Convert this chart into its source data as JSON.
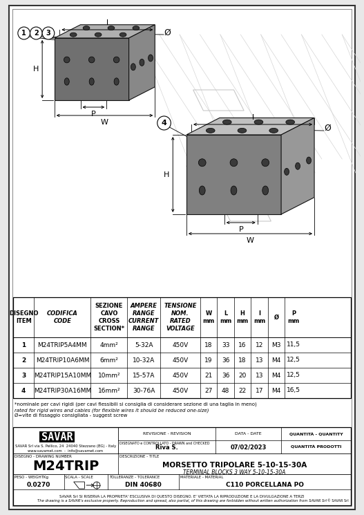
{
  "bg_color": "#e8e8e8",
  "page_bg": "#ffffff",
  "table_rows": [
    [
      "1",
      "M24TRIP5A4MM",
      "4mm²",
      "5-32A",
      "450V",
      "18",
      "33",
      "16",
      "12",
      "M3",
      "11,5"
    ],
    [
      "2",
      "M24TRIP10A6MM",
      "6mm²",
      "10-32A",
      "450V",
      "19",
      "36",
      "18",
      "13",
      "M4",
      "12,5"
    ],
    [
      "3",
      "M24TRIP15A10MM",
      "10mm²",
      "15-57A",
      "450V",
      "21",
      "36",
      "20",
      "13",
      "M4",
      "12,5"
    ],
    [
      "4",
      "M24TRIP30A16MM",
      "16mm²",
      "30-76A",
      "450V",
      "27",
      "48",
      "22",
      "17",
      "M4",
      "16,5"
    ]
  ],
  "footnote_it": "*nominale per cavi rigidi (per cavi flessibili si consiglia di considerare sezione di una taglia in meno)",
  "footnote_en": "rated for rigid wires and cables (for flexible wires it should be reduced one-size)",
  "footnote_screw": "Ø=vite di fissaggio consigliata - suggest screw",
  "company_line1": "SAVAR Srl via S. Pellico, 24  24040 Stezzano (BG) - Italy",
  "company_line2": "www.savamet.com  -  info@savamet.com",
  "revision_label": "REVISIONE - REVISION",
  "date_label": "DATA - DATE",
  "quantity_label": "QUANTITÀ - QUANTITY",
  "drawn_label": "DISEGNATO e CONTROLLATO - DRAWN and CHECKED",
  "drawn_date_label": "DATA - DATE",
  "drawn_by": "Riva S.",
  "drawn_date": "07/02/2023",
  "quantity_prodotti": "QUANTITÀ PRODOTTI",
  "drawing_number_label": "DISEGNO - DRAWING NUMBER",
  "drawing_number": "M24TRIP",
  "description_label": "DESCRIZIONE - TITLE",
  "description_it": "MORSETTO TRIPOLARE 5-10-15-30A",
  "description_en": "TERMINAL BLOCKS 3 WAY 5-10-15-30A",
  "weight_label": "PESO - WEIGHTKg",
  "weight_value": "0.0270",
  "scale_label": "SCALA - SCALE",
  "tolerance_label": "TOLLERANZE - TOLERANCE",
  "tolerance_value": "DIN 40680",
  "material_label": "MATERIALE - MATERIAL",
  "material_value": "C110 PORCELLANA PO",
  "copyright_it": "SAVAR Srl SI RISERVA LA PROPRIETA' ESCLUSIVA DI QUESTO DISEGNO. E' VIETATA LA RIPRODUZIONE E LA DIVULGAZIONE A TERZI",
  "copyright_en": "The drawing is a SAVAR's exclusive property. Reproduction and spread, also partial, of this drawing are forbidden without written authorization from SAVAR Srl",
  "savar_small": "© SAVAR Srl",
  "block1_color_top": "#b0b0b0",
  "block1_color_front": "#707070",
  "block1_color_right": "#888888",
  "block2_color_top": "#c0c0c0",
  "block2_color_front": "#808080",
  "block2_color_right": "#989898",
  "hole_color": "#3a3a3a",
  "dim_line_color": "#000000"
}
